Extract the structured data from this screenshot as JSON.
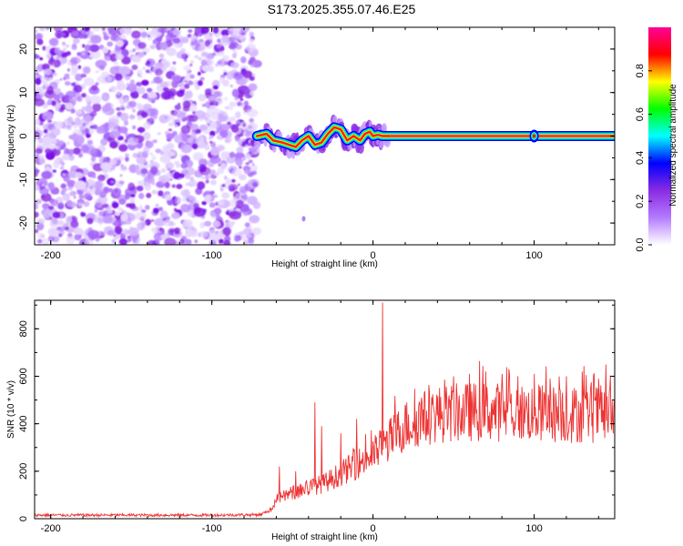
{
  "title": "S173.2025.355.07.46.E25",
  "chart_data": [
    {
      "type": "heatmap",
      "xlabel": "Height of straight line (km)",
      "ylabel": "Frequency (Hz)",
      "xlim": [
        -210,
        150
      ],
      "ylim": [
        -25,
        25
      ],
      "xticks": [
        -200,
        -100,
        0,
        100
      ],
      "yticks": [
        -20,
        -10,
        0,
        10,
        20
      ],
      "noise_region_x": [
        -210,
        -72
      ],
      "ridge": {
        "x": [
          -72,
          -66,
          -62,
          -56,
          -52,
          -48,
          -44,
          -40,
          -36,
          -32,
          -28,
          -24,
          -20,
          -16,
          -12,
          -8,
          -5,
          -2,
          0,
          3,
          6,
          10,
          150
        ],
        "freq": [
          0,
          0.5,
          -1,
          -1.5,
          -2,
          -2.5,
          -1,
          0,
          -2,
          -1.5,
          0.5,
          2,
          1.5,
          -1,
          0,
          -1,
          0.5,
          1,
          0,
          0.3,
          0,
          0,
          0
        ]
      },
      "colorbar": {
        "label": "Normalized spectral amplitude",
        "range": [
          0,
          1
        ],
        "ticks": [
          "0.0",
          "0.2",
          "0.4",
          "0.6",
          "0.8"
        ],
        "colors": [
          "#ffffff",
          "#b37bff",
          "#8a2be2",
          "#0000ff",
          "#00ffff",
          "#00ff00",
          "#ffff00",
          "#ff0000",
          "#ff0099"
        ]
      }
    },
    {
      "type": "line",
      "xlabel": "Height of straight line (km)",
      "ylabel": "SNR (10 * v/v)",
      "xlim": [
        -210,
        150
      ],
      "ylim": [
        0,
        920
      ],
      "xticks": [
        -200,
        -100,
        0,
        100
      ],
      "yticks": [
        0,
        200,
        400,
        600,
        800
      ],
      "color": "#ee3333",
      "envelope": {
        "x": [
          -210,
          -150,
          -100,
          -70,
          -63,
          -60,
          -50,
          -40,
          -30,
          -20,
          -10,
          0,
          10,
          20,
          30,
          40,
          60,
          80,
          100,
          120,
          150
        ],
        "y": [
          15,
          15,
          15,
          17,
          40,
          80,
          110,
          130,
          150,
          190,
          230,
          270,
          330,
          390,
          420,
          440,
          450,
          450,
          445,
          440,
          440
        ]
      },
      "spikes": [
        {
          "x": -58,
          "y": 220
        },
        {
          "x": -48,
          "y": 200
        },
        {
          "x": -36,
          "y": 490
        },
        {
          "x": -32,
          "y": 390
        },
        {
          "x": -20,
          "y": 360
        },
        {
          "x": -10,
          "y": 420
        },
        {
          "x": 6,
          "y": 910
        },
        {
          "x": 20,
          "y": 480
        },
        {
          "x": 30,
          "y": 510
        },
        {
          "x": 50,
          "y": 600
        },
        {
          "x": 60,
          "y": 610
        },
        {
          "x": 70,
          "y": 620
        },
        {
          "x": 80,
          "y": 610
        },
        {
          "x": 90,
          "y": 600
        },
        {
          "x": 100,
          "y": 610
        },
        {
          "x": 110,
          "y": 590
        },
        {
          "x": 120,
          "y": 600
        },
        {
          "x": 130,
          "y": 620
        },
        {
          "x": 140,
          "y": 590
        }
      ]
    }
  ]
}
